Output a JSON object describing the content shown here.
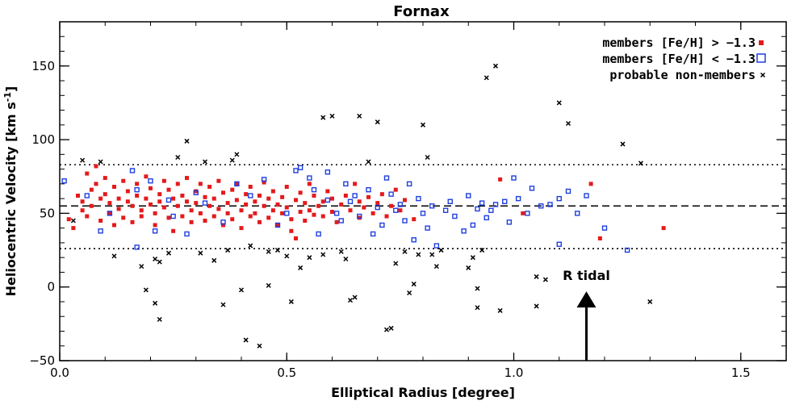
{
  "chart_data": {
    "type": "scatter",
    "title": "Fornax",
    "xlabel": "Elliptical Radius [degree]",
    "ylabel": "Heliocentric Velocity [km s",
    "ylabel_sup": "-1",
    "ylabel_end": "]",
    "xlim": [
      0.0,
      1.6
    ],
    "ylim": [
      -50,
      180
    ],
    "xticks": [
      0.0,
      0.5,
      1.0,
      1.5
    ],
    "xtick_labels": [
      "0.0",
      "0.5",
      "1.0",
      "1.5"
    ],
    "yticks": [
      -50,
      0,
      50,
      100,
      150
    ],
    "ytick_labels": [
      "−50",
      "0",
      "50",
      "100",
      "150"
    ],
    "grid": false,
    "legend_position": "top-right",
    "reference_lines": [
      {
        "y": 55,
        "style": "dashed"
      },
      {
        "y": 83,
        "style": "dotted"
      },
      {
        "y": 26,
        "style": "dotted"
      }
    ],
    "annotation": {
      "text": "R tidal",
      "x": 1.16,
      "arrow_from_y": -50,
      "arrow_to_y": -3
    },
    "series": [
      {
        "name": "members [Fe/H] > −1.3",
        "marker": "filled-square",
        "color": "#e41a1c",
        "points": [
          [
            0.02,
            46
          ],
          [
            0.03,
            40
          ],
          [
            0.04,
            62
          ],
          [
            0.05,
            58
          ],
          [
            0.05,
            52
          ],
          [
            0.06,
            77
          ],
          [
            0.06,
            48
          ],
          [
            0.07,
            66
          ],
          [
            0.07,
            55
          ],
          [
            0.08,
            82
          ],
          [
            0.08,
            70
          ],
          [
            0.09,
            60
          ],
          [
            0.09,
            45
          ],
          [
            0.1,
            74
          ],
          [
            0.1,
            63
          ],
          [
            0.11,
            57
          ],
          [
            0.11,
            50
          ],
          [
            0.12,
            68
          ],
          [
            0.12,
            42
          ],
          [
            0.13,
            60
          ],
          [
            0.13,
            53
          ],
          [
            0.14,
            72
          ],
          [
            0.14,
            47
          ],
          [
            0.15,
            65
          ],
          [
            0.15,
            58
          ],
          [
            0.16,
            55
          ],
          [
            0.16,
            44
          ],
          [
            0.17,
            70
          ],
          [
            0.17,
            62
          ],
          [
            0.18,
            52
          ],
          [
            0.18,
            48
          ],
          [
            0.19,
            75
          ],
          [
            0.19,
            60
          ],
          [
            0.2,
            67
          ],
          [
            0.2,
            56
          ],
          [
            0.21,
            50
          ],
          [
            0.21,
            42
          ],
          [
            0.22,
            63
          ],
          [
            0.22,
            58
          ],
          [
            0.23,
            72
          ],
          [
            0.23,
            54
          ],
          [
            0.24,
            47
          ],
          [
            0.24,
            66
          ],
          [
            0.25,
            60
          ],
          [
            0.25,
            38
          ],
          [
            0.26,
            70
          ],
          [
            0.26,
            55
          ],
          [
            0.27,
            62
          ],
          [
            0.27,
            48
          ],
          [
            0.28,
            58
          ],
          [
            0.28,
            74
          ],
          [
            0.29,
            52
          ],
          [
            0.29,
            44
          ],
          [
            0.3,
            65
          ],
          [
            0.3,
            57
          ],
          [
            0.31,
            70
          ],
          [
            0.31,
            50
          ],
          [
            0.32,
            61
          ],
          [
            0.32,
            45
          ],
          [
            0.33,
            55
          ],
          [
            0.33,
            68
          ],
          [
            0.34,
            48
          ],
          [
            0.34,
            60
          ],
          [
            0.35,
            72
          ],
          [
            0.35,
            53
          ],
          [
            0.36,
            42
          ],
          [
            0.36,
            64
          ],
          [
            0.37,
            57
          ],
          [
            0.37,
            50
          ],
          [
            0.38,
            66
          ],
          [
            0.38,
            46
          ],
          [
            0.39,
            59
          ],
          [
            0.39,
            70
          ],
          [
            0.4,
            52
          ],
          [
            0.4,
            40
          ],
          [
            0.41,
            63
          ],
          [
            0.41,
            56
          ],
          [
            0.42,
            48
          ],
          [
            0.42,
            68
          ],
          [
            0.43,
            58
          ],
          [
            0.43,
            50
          ],
          [
            0.44,
            62
          ],
          [
            0.44,
            44
          ],
          [
            0.45,
            55
          ],
          [
            0.45,
            71
          ],
          [
            0.46,
            47
          ],
          [
            0.46,
            60
          ],
          [
            0.47,
            52
          ],
          [
            0.47,
            65
          ],
          [
            0.48,
            56
          ],
          [
            0.48,
            42
          ],
          [
            0.49,
            61
          ],
          [
            0.49,
            50
          ],
          [
            0.5,
            68
          ],
          [
            0.5,
            54
          ],
          [
            0.51,
            46
          ],
          [
            0.51,
            38
          ],
          [
            0.52,
            59
          ],
          [
            0.52,
            33
          ],
          [
            0.53,
            51
          ],
          [
            0.53,
            64
          ],
          [
            0.54,
            57
          ],
          [
            0.54,
            45
          ],
          [
            0.55,
            70
          ],
          [
            0.55,
            52
          ],
          [
            0.56,
            49
          ],
          [
            0.56,
            62
          ],
          [
            0.57,
            55
          ],
          [
            0.58,
            58
          ],
          [
            0.58,
            48
          ],
          [
            0.59,
            65
          ],
          [
            0.6,
            51
          ],
          [
            0.6,
            60
          ],
          [
            0.61,
            44
          ],
          [
            0.62,
            56
          ],
          [
            0.63,
            62
          ],
          [
            0.64,
            52
          ],
          [
            0.65,
            70
          ],
          [
            0.66,
            47
          ],
          [
            0.66,
            58
          ],
          [
            0.67,
            54
          ],
          [
            0.68,
            61
          ],
          [
            0.69,
            50
          ],
          [
            0.7,
            57
          ],
          [
            0.71,
            63
          ],
          [
            0.72,
            48
          ],
          [
            0.73,
            55
          ],
          [
            0.74,
            66
          ],
          [
            0.75,
            52
          ],
          [
            0.76,
            59
          ],
          [
            0.78,
            46
          ],
          [
            0.97,
            73
          ],
          [
            1.02,
            50
          ],
          [
            1.17,
            70
          ],
          [
            1.19,
            33
          ],
          [
            1.33,
            40
          ]
        ]
      },
      {
        "name": "members [Fe/H] < −1.3",
        "marker": "open-square",
        "color": "#1f3fe0",
        "points": [
          [
            0.01,
            72
          ],
          [
            0.06,
            62
          ],
          [
            0.09,
            38
          ],
          [
            0.11,
            50
          ],
          [
            0.16,
            79
          ],
          [
            0.17,
            66
          ],
          [
            0.17,
            27
          ],
          [
            0.2,
            72
          ],
          [
            0.21,
            38
          ],
          [
            0.24,
            59
          ],
          [
            0.25,
            48
          ],
          [
            0.28,
            36
          ],
          [
            0.3,
            64
          ],
          [
            0.32,
            57
          ],
          [
            0.36,
            44
          ],
          [
            0.39,
            70
          ],
          [
            0.42,
            62
          ],
          [
            0.45,
            73
          ],
          [
            0.48,
            42
          ],
          [
            0.52,
            79
          ],
          [
            0.53,
            81
          ],
          [
            0.55,
            74
          ],
          [
            0.56,
            66
          ],
          [
            0.57,
            36
          ],
          [
            0.59,
            59
          ],
          [
            0.61,
            50
          ],
          [
            0.62,
            45
          ],
          [
            0.63,
            70
          ],
          [
            0.64,
            58
          ],
          [
            0.65,
            62
          ],
          [
            0.66,
            48
          ],
          [
            0.68,
            66
          ],
          [
            0.7,
            54
          ],
          [
            0.71,
            42
          ],
          [
            0.72,
            74
          ],
          [
            0.73,
            63
          ],
          [
            0.74,
            52
          ],
          [
            0.75,
            56
          ],
          [
            0.76,
            45
          ],
          [
            0.77,
            70
          ],
          [
            0.78,
            32
          ],
          [
            0.79,
            60
          ],
          [
            0.8,
            50
          ],
          [
            0.81,
            40
          ],
          [
            0.82,
            55
          ],
          [
            0.83,
            28
          ],
          [
            0.85,
            52
          ],
          [
            0.87,
            48
          ],
          [
            0.89,
            38
          ],
          [
            0.9,
            62
          ],
          [
            0.92,
            53
          ],
          [
            0.93,
            57
          ],
          [
            0.94,
            47
          ],
          [
            0.95,
            52
          ],
          [
            0.96,
            56
          ],
          [
            0.98,
            58
          ],
          [
            0.99,
            44
          ],
          [
            1.0,
            74
          ],
          [
            1.01,
            60
          ],
          [
            1.03,
            50
          ],
          [
            1.06,
            55
          ],
          [
            1.08,
            56
          ],
          [
            1.1,
            60
          ],
          [
            1.12,
            65
          ],
          [
            1.14,
            50
          ],
          [
            1.16,
            62
          ],
          [
            1.2,
            40
          ],
          [
            1.25,
            25
          ],
          [
            1.1,
            29
          ],
          [
            1.04,
            67
          ],
          [
            0.91,
            42
          ],
          [
            0.86,
            58
          ],
          [
            0.69,
            36
          ],
          [
            0.59,
            78
          ],
          [
            0.5,
            50
          ]
        ]
      },
      {
        "name": "probable non-members",
        "marker": "x",
        "color": "#000000",
        "points": [
          [
            0.03,
            45
          ],
          [
            0.05,
            86
          ],
          [
            0.09,
            85
          ],
          [
            0.12,
            21
          ],
          [
            0.18,
            14
          ],
          [
            0.19,
            -2
          ],
          [
            0.21,
            -11
          ],
          [
            0.22,
            -22
          ],
          [
            0.21,
            19
          ],
          [
            0.22,
            17
          ],
          [
            0.24,
            23
          ],
          [
            0.26,
            88
          ],
          [
            0.28,
            99
          ],
          [
            0.31,
            23
          ],
          [
            0.32,
            85
          ],
          [
            0.34,
            18
          ],
          [
            0.36,
            -12
          ],
          [
            0.37,
            25
          ],
          [
            0.38,
            86
          ],
          [
            0.39,
            90
          ],
          [
            0.4,
            -2
          ],
          [
            0.41,
            -36
          ],
          [
            0.42,
            28
          ],
          [
            0.44,
            -40
          ],
          [
            0.46,
            24
          ],
          [
            0.5,
            21
          ],
          [
            0.51,
            -10
          ],
          [
            0.53,
            13
          ],
          [
            0.55,
            20
          ],
          [
            0.58,
            115
          ],
          [
            0.6,
            116
          ],
          [
            0.62,
            24
          ],
          [
            0.63,
            19
          ],
          [
            0.64,
            -9
          ],
          [
            0.65,
            -7
          ],
          [
            0.66,
            116
          ],
          [
            0.68,
            85
          ],
          [
            0.7,
            112
          ],
          [
            0.72,
            -29
          ],
          [
            0.73,
            -28
          ],
          [
            0.74,
            16
          ],
          [
            0.76,
            24
          ],
          [
            0.77,
            -4
          ],
          [
            0.78,
            2
          ],
          [
            0.79,
            22
          ],
          [
            0.8,
            110
          ],
          [
            0.81,
            88
          ],
          [
            0.82,
            22
          ],
          [
            0.83,
            14
          ],
          [
            0.84,
            25
          ],
          [
            0.58,
            22
          ],
          [
            0.48,
            25
          ],
          [
            0.46,
            1
          ],
          [
            0.9,
            13
          ],
          [
            0.91,
            20
          ],
          [
            0.92,
            -14
          ],
          [
            0.92,
            -1
          ],
          [
            0.93,
            25
          ],
          [
            0.94,
            142
          ],
          [
            0.96,
            150
          ],
          [
            0.97,
            -16
          ],
          [
            1.05,
            -13
          ],
          [
            1.05,
            7
          ],
          [
            1.07,
            5
          ],
          [
            1.1,
            125
          ],
          [
            1.12,
            111
          ],
          [
            1.24,
            97
          ],
          [
            1.28,
            84
          ],
          [
            1.3,
            -10
          ]
        ]
      }
    ]
  }
}
